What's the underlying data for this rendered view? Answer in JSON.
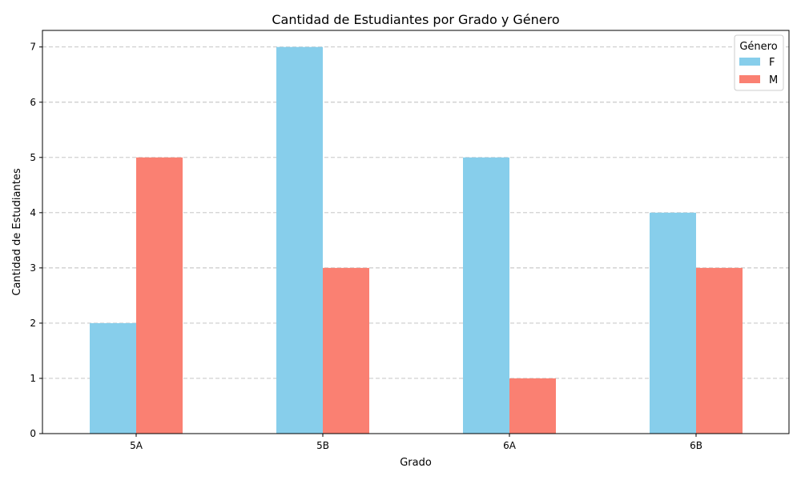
{
  "chart_data": {
    "type": "bar",
    "title": "Cantidad de Estudiantes por Grado y Género",
    "xlabel": "Grado",
    "ylabel": "Cantidad de Estudiantes",
    "categories": [
      "5A",
      "5B",
      "6A",
      "6B"
    ],
    "series": [
      {
        "name": "F",
        "values": [
          2,
          7,
          5,
          4
        ],
        "color": "#87ceeb"
      },
      {
        "name": "M",
        "values": [
          5,
          3,
          1,
          3
        ],
        "color": "#fa8072"
      }
    ],
    "ylim": [
      0,
      7.3
    ],
    "yticks": [
      "0",
      "1",
      "2",
      "3",
      "4",
      "5",
      "6",
      "7"
    ],
    "grid": "y-dashed",
    "legend": {
      "title": "Género",
      "position": "top-right"
    }
  }
}
